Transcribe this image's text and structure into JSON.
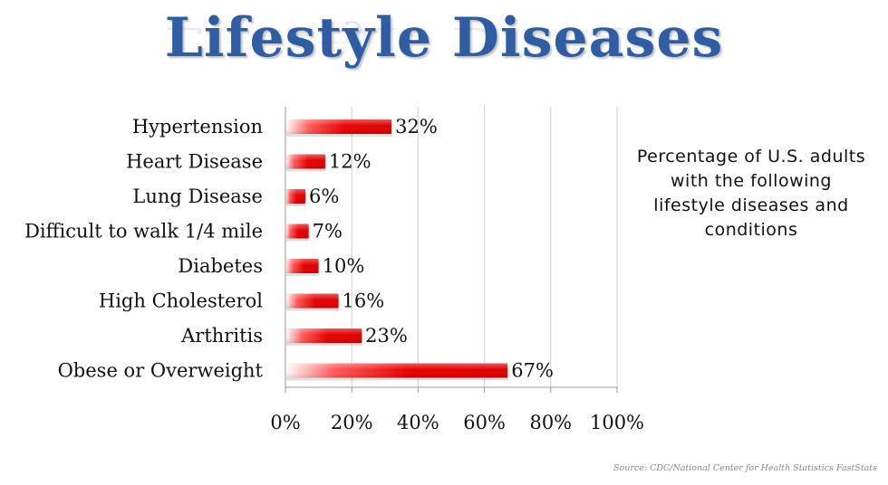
{
  "title": "Lifestyle Diseases",
  "annotation": "Percentage of U.S. adults with the following lifestyle diseases and conditions",
  "source": "Source: CDC/National Center for Health Statistics FastStats",
  "colors": {
    "title": "#2e5da3",
    "bar": "#e00000",
    "grid": "#d0d0d0",
    "axis": "#999999"
  },
  "chart_data": {
    "type": "bar",
    "orientation": "horizontal",
    "categories": [
      "Hypertension",
      "Heart Disease",
      "Lung Disease",
      "Difficult to walk 1/4 mile",
      "Diabetes",
      "High Cholesterol",
      "Arthritis",
      "Obese or Overweight"
    ],
    "values": [
      32,
      12,
      6,
      7,
      10,
      16,
      23,
      67
    ],
    "value_labels": [
      "32%",
      "12%",
      "6%",
      "7%",
      "10%",
      "16%",
      "23%",
      "67%"
    ],
    "xlim": [
      0,
      100
    ],
    "x_ticks": [
      0,
      20,
      40,
      60,
      80,
      100
    ],
    "x_tick_labels": [
      "0%",
      "20%",
      "40%",
      "60%",
      "80%",
      "100%"
    ],
    "grid": true,
    "legend": false
  }
}
